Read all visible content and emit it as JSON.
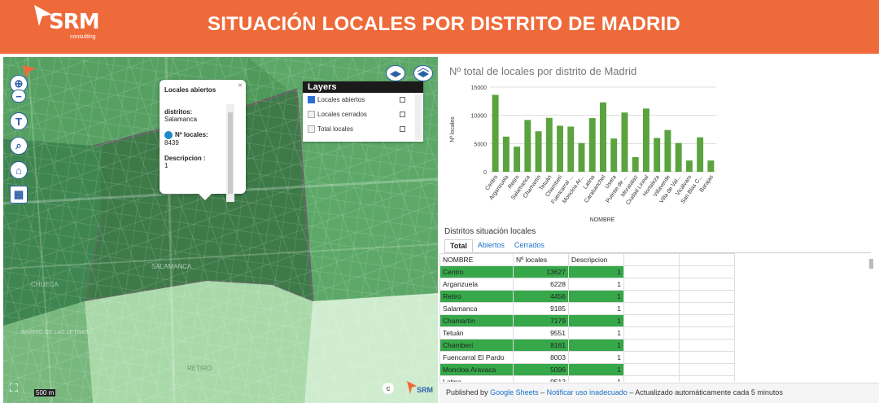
{
  "header": {
    "title": "SITUACIÓN LOCALES POR DISTRITO DE MADRID",
    "logo_text": "SRM",
    "logo_sub": "consulting",
    "bg_color": "#ef6a3a"
  },
  "map": {
    "labels": [
      "SALAMANCA",
      "CHUECA",
      "BARRIO DE LAS LETRAS",
      "RETIRO"
    ],
    "popup": {
      "title": "Locales abiertos",
      "field1_label": "distritos:",
      "field1_value": "Salamanca",
      "field2_label": "Nº locales:",
      "field2_value": "8439",
      "field3_label": "Descripcion :",
      "field3_value": "1",
      "close": "×"
    },
    "layers": {
      "title": "Layers",
      "items": [
        {
          "label": "Locales abiertos",
          "checked": true
        },
        {
          "label": "Locales cerrados",
          "checked": false
        },
        {
          "label": "Total locales",
          "checked": false
        }
      ]
    },
    "scale": "500 m",
    "copyright": "c",
    "logo_text": "SRM",
    "tool_icons": [
      "locate-icon",
      "home-icon",
      "text-icon",
      "search-icon",
      "house-icon",
      "grid-icon"
    ]
  },
  "chart_data": {
    "type": "bar",
    "title": "Nº total de locales por distrito de Madrid",
    "xlabel": "NOMBRE",
    "ylabel": "Nº locales",
    "ylim": [
      0,
      15000
    ],
    "yticks": [
      0,
      5000,
      10000,
      15000
    ],
    "color": "#5aa33e",
    "categories": [
      "Centro",
      "Arganzuela",
      "Retiro",
      "Salamanca",
      "Chamartín",
      "Tetuán",
      "Chamberí",
      "Fuencarral ...",
      "Moncloa Ar...",
      "Latina",
      "Carabanchel",
      "Usera",
      "Puente de ...",
      "Moratalaz",
      "Ciudad Lineal",
      "Hortaleza",
      "Villaverde",
      "Villa de Val...",
      "Vicálvaro",
      "San Blas C...",
      "Barajas"
    ],
    "values": [
      13627,
      6228,
      4456,
      9185,
      7179,
      9551,
      8161,
      8003,
      5096,
      9512,
      12300,
      5900,
      10500,
      2600,
      11200,
      6000,
      7400,
      5100,
      2000,
      6100,
      2000
    ]
  },
  "table": {
    "title": "Distritos situación locales",
    "tabs": [
      "Total",
      "Abiertos",
      "Cerrados"
    ],
    "active_tab": "Total",
    "columns": [
      "NOMBRE",
      "Nº locales",
      "Descripcion"
    ],
    "rows": [
      [
        "Centro",
        "13627",
        "1"
      ],
      [
        "Arganzuela",
        "6228",
        "1"
      ],
      [
        "Retiro",
        "4456",
        "1"
      ],
      [
        "Salamanca",
        "9185",
        "1"
      ],
      [
        "Chamartín",
        "7179",
        "1"
      ],
      [
        "Tetuán",
        "9551",
        "1"
      ],
      [
        "Chamberí",
        "8161",
        "1"
      ],
      [
        "Fuencarral El Pardo",
        "8003",
        "1"
      ],
      [
        "Moncloa Aravaca",
        "5096",
        "1"
      ],
      [
        "Latina",
        "9512",
        "1"
      ]
    ]
  },
  "footer": {
    "prefix": "Published by",
    "link1": "Google Sheets",
    "sep": "–",
    "link2": "Notificar uso inadecuado",
    "suffix": "– Actualizado automáticamente cada 5 minutos"
  }
}
